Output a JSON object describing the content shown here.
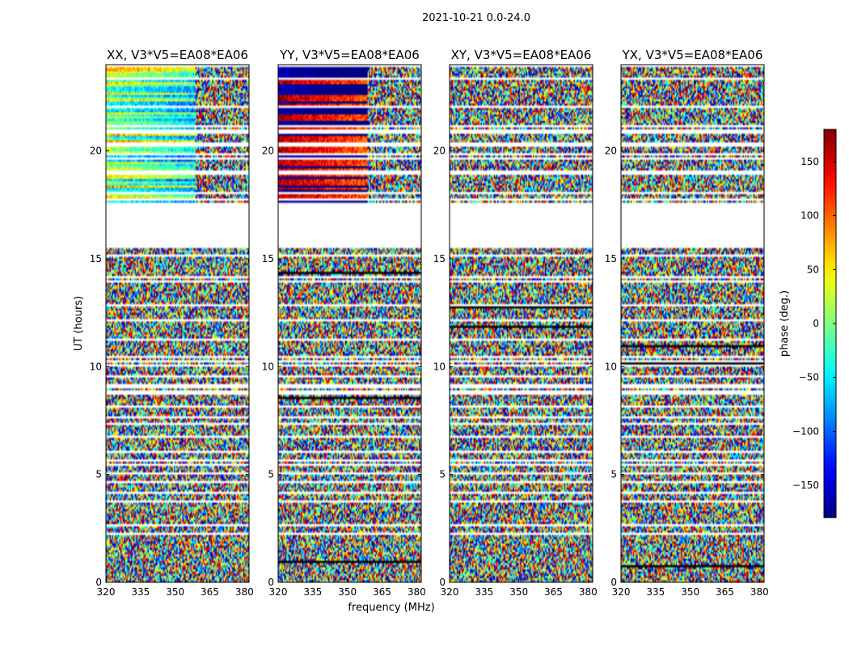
{
  "chart_data": {
    "type": "heatmap",
    "title": "2021-10-21 0.0-24.0",
    "xlabel": "frequency (MHz)",
    "ylabel": "UT (hours)",
    "xlim": [
      320,
      382
    ],
    "ylim": [
      0,
      24
    ],
    "x_ticks": [
      "320",
      "335",
      "350",
      "365",
      "380"
    ],
    "x_tick_values": [
      320,
      335,
      350,
      365,
      380
    ],
    "y_ticks": [
      "0",
      "5",
      "10",
      "15",
      "20"
    ],
    "y_tick_values": [
      0,
      5,
      10,
      15,
      20
    ],
    "colormap": "jet",
    "colorbar": {
      "label": "phase (deg.)",
      "range": [
        -180,
        180
      ],
      "ticks": [
        "150",
        "100",
        "50",
        "0",
        "−50",
        "−100",
        "−150"
      ],
      "tick_values": [
        150,
        100,
        50,
        0,
        -50,
        -100,
        -150
      ]
    },
    "panels": [
      {
        "title": "XX, V3*V5=EA08*EA06",
        "coherent_phase_high_ut": true
      },
      {
        "title": "YY, V3*V5=EA08*EA06",
        "coherent_phase_high_ut": true
      },
      {
        "title": "XY, V3*V5=EA08*EA06",
        "coherent_phase_high_ut": false
      },
      {
        "title": "YX, V3*V5=EA08*EA06",
        "coherent_phase_high_ut": false
      }
    ],
    "flagged_ut_range": [
      15.5,
      17.6
    ]
  }
}
